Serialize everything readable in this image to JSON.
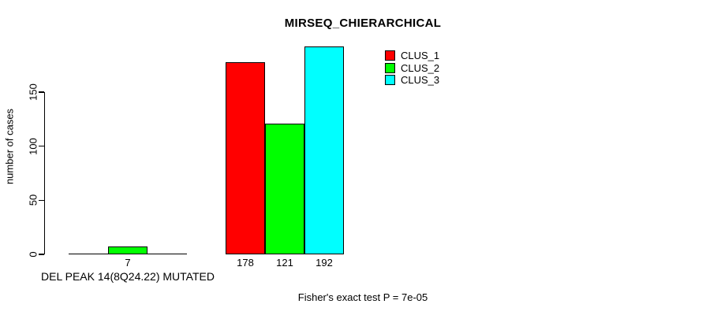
{
  "chart_data": {
    "type": "bar",
    "title": "MIRSEQ_CHIERARCHICAL",
    "xlabel": "",
    "ylabel": "number of cases",
    "ylim": [
      0,
      196
    ],
    "yticks": [
      0,
      50,
      100,
      150
    ],
    "grid": false,
    "legend_position": "top-right",
    "categories": [
      "DEL PEAK 14(8Q24.22) MUTATED",
      ""
    ],
    "series": [
      {
        "name": "CLUS_1",
        "color": "#ff0000",
        "values": [
          0,
          178
        ]
      },
      {
        "name": "CLUS_2",
        "color": "#00ff00",
        "values": [
          7,
          121
        ]
      },
      {
        "name": "CLUS_3",
        "color": "#00ffff",
        "values": [
          0,
          192
        ]
      }
    ],
    "value_labels": "shown for nonzero bars",
    "annotation": "Fisher's exact test P = 7e-05"
  },
  "colors": {
    "background": "#ffffff",
    "text": "#000000",
    "bar_border": "#000000",
    "axis": "#000000"
  }
}
